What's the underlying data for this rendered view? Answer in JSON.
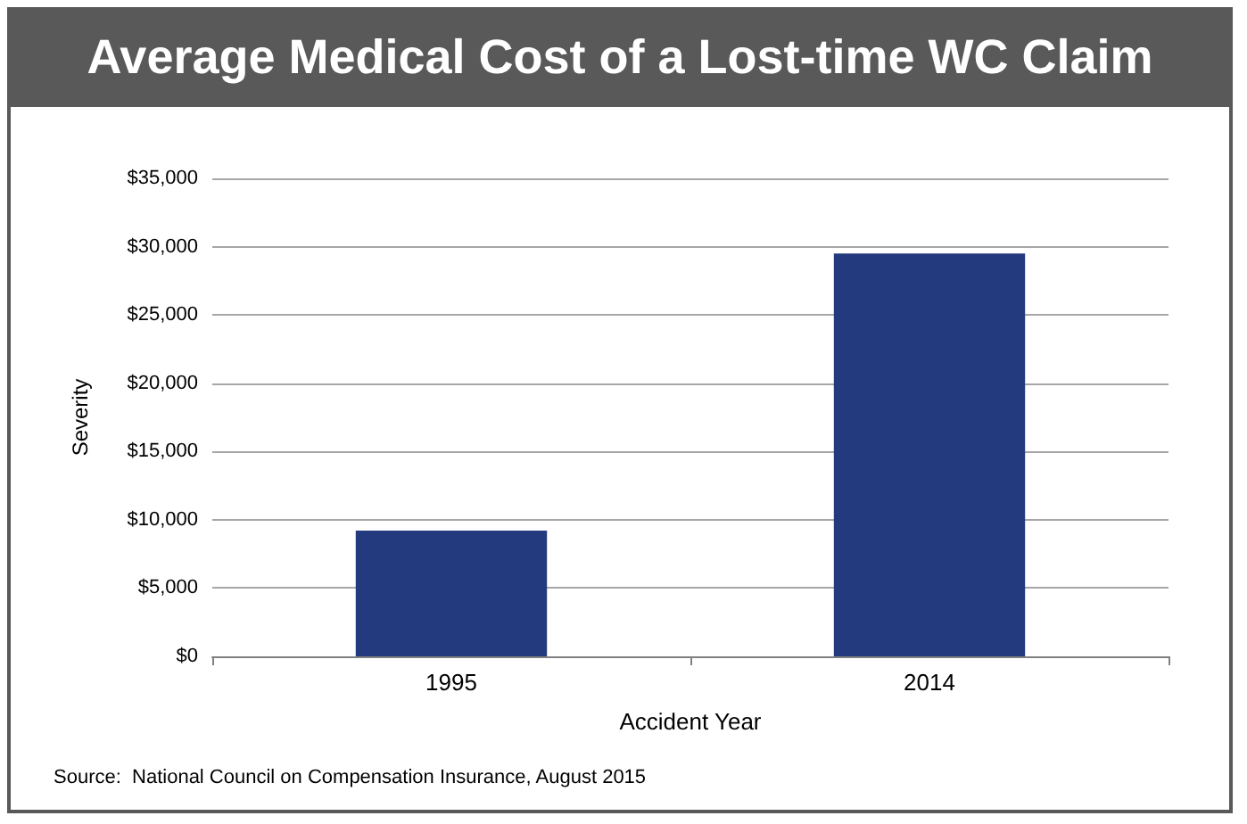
{
  "chart_data": {
    "type": "bar",
    "title": "Average Medical Cost of a Lost-time WC Claim",
    "xlabel": "Accident Year",
    "ylabel": "Severity",
    "categories": [
      "1995",
      "2014"
    ],
    "values": [
      9200,
      29500
    ],
    "color": "#233a7e",
    "ylim": [
      0,
      35000
    ],
    "yticks": [
      {
        "value": 0,
        "label": "$0"
      },
      {
        "value": 5000,
        "label": "$5,000"
      },
      {
        "value": 10000,
        "label": "$10,000"
      },
      {
        "value": 15000,
        "label": "$15,000"
      },
      {
        "value": 20000,
        "label": "$20,000"
      },
      {
        "value": 25000,
        "label": "$25,000"
      },
      {
        "value": 30000,
        "label": "$30,000"
      },
      {
        "value": 35000,
        "label": "$35,000"
      }
    ],
    "grid": "y",
    "annotations": [
      "Source:  National Council on Compensation Insurance, August 2015"
    ]
  }
}
